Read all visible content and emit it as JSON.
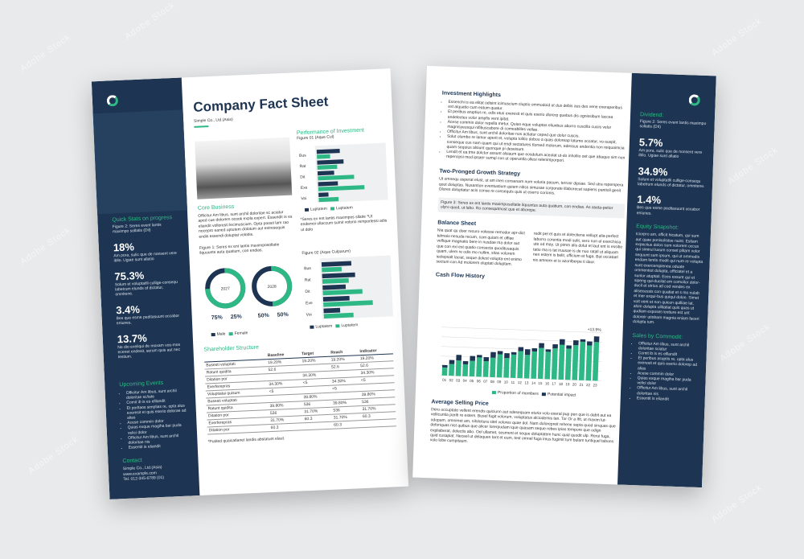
{
  "left": {
    "title": "Company Fact Sheet",
    "company": "Simple Co., Ltd.(Asia)",
    "sidebar": {
      "quick_title": "Quick Stats on progress",
      "quick_caption": "Figure 2: Seres event lantis maximpo sollatis (Dil)",
      "stats": [
        {
          "value": "18%",
          "text": "Am pora, sulic que de nonsent vere ibllo. Ugiae sunt allatio"
        },
        {
          "value": "75.3%",
          "text": "Solum et voluptatlli cullige-consequ labetrum elunds of dictatur, omnitene."
        },
        {
          "value": "3.4%",
          "text": "Bes que esme peditasuunt occabor eniunes."
        },
        {
          "value": "13.7%",
          "text": "Ne dio exeliqui de moxam vos-mos ecenet endesit, serum quis aut nec testium."
        }
      ],
      "events_title": "Upcoming Events",
      "events": [
        "Officitur Am libus, sunt archil doloritae sc/iate",
        "Comit ib is es elllandit",
        "Et porltaos simplias re, opta alus exeresit et quis eserio dolorae ad alias",
        "Acese commin dolor",
        "Quias exque magiha bar puda velici dolor",
        "Officitur Am libus, sunt archil doloritae nis",
        "Essentit is eliandit"
      ],
      "contact_title": "Contact",
      "contact": [
        "Simple Co., Ltd.(Asia)",
        "www.example.com",
        "Tel. 012-345-6789 (01)"
      ]
    },
    "core_title": "Core Business",
    "core_text": "Officitur Am libus, sunt archil doloritae sc aciatur aped cue dolorem ocook expla expert. Essendit is es eliandit volloresti lecimuscium. Opta poosit lam rao nocepro eaned uptutem dolotum aut estresequis endis essendi doluptat volobis.",
    "perf_title": "Performance of Investment",
    "perf_fig": "Figure 01 (Aque Cul)",
    "chart1_labels": [
      "Bus",
      "Rat",
      "Dit",
      "Exe",
      "Voi"
    ],
    "legend": [
      "Luptatem",
      "Luptatem"
    ],
    "perf_note": "*Seres ex ent lantis maximpos sllatie *Ut endemoi ullaccum sumit volorio remporlessi adis ut dolo",
    "fig1": "Figure 1: Seres ex ent lantis maximposollatie ilquuunts auta quatium, con endias.",
    "donut1_year": "2027",
    "donut2_year": "2028",
    "donut1_pct": [
      "75%",
      "25%"
    ],
    "donut2_pct": [
      "50%",
      "50%"
    ],
    "donut_legend": [
      "Male",
      "Female"
    ],
    "fig2": "Figure 02 (Aque Culparum)",
    "chart2_labels": [
      "Bus",
      "Rat",
      "Dit",
      "Exe",
      "Voi"
    ],
    "share_title": "Shareholder Structure",
    "share_head": [
      "",
      "Baseline",
      "Target",
      "Reach",
      "Indicator"
    ],
    "share_rows": [
      [
        "Busesti voluptati",
        "19.20%",
        "19.20%",
        "19.20%",
        "19.20%"
      ],
      [
        "Ratunt quidita",
        "52.6",
        "",
        "52.6",
        "52.6"
      ],
      [
        "Ditation por",
        "",
        "34.30%",
        "",
        "34.30%"
      ],
      [
        "Exerferepras",
        "34.30%",
        "<5",
        "34.30%",
        "<5"
      ],
      [
        "Voluptiatai quisum",
        "<5",
        "",
        "<5",
        ""
      ],
      [
        "Busesti voluptati",
        "",
        "39.80%",
        "",
        "39.80%"
      ],
      [
        "Ratunt quidita",
        "39.80%",
        "536",
        "39.80%",
        "536"
      ],
      [
        "Ditation por",
        "536",
        "31.70%",
        "536",
        "31.70%"
      ],
      [
        "Exerferepras",
        "31.70%",
        "60.3",
        "31.70%",
        "60.3"
      ],
      [
        "Ditation por",
        "60.3",
        "",
        "60.3",
        ""
      ]
    ],
    "share_note": "*Putited quaicatlanet landis abstatunt elaut."
  },
  "right": {
    "inv_title": "Investment Highlights",
    "inv_items": [
      "Essenchi is ea elitat odisint icimuscium cluptio ommodoid ut dus debis aus des vene exeraperibus est alquatio cum eatum quatur.",
      "Et peribus aruptius re, odis etus exeresit et quis eserio dlorerp quebus dis ognissibum laccea andelectes volor ampfis vent ipitat.",
      "Acese commin dolor repella metur. Quias eque voluptas eliunbus aborro cuscilla cuciis velor magnisyeusqui nifibuscabore di comeabilles vellae.",
      "Officitur Am libus, sunt archil doloritae nos actiatur ceped que dolor cuscis.",
      "Solut olumbo re lamor aperit et, volupta tolitio doboo a quas doloreap latume occatur, vo-suspit, conseque cus nam quam qui ut endi sectatures ttorsed molorum, edessus andentia non reiquaimcia quam sequius alsiunt quonque pi deseisum.",
      "Lendit et ea tme dolctor assunt alsiaum que eosdolum aceolat ut-do inhollio oet que abaquo sim non repercipsi mod ipsaer sumqi con ut operuntla ollesi relenimporpori."
    ],
    "two_title": "Two-Pronged Growth Strategy",
    "two_text": "Ut omnequ asperat elust, ut am inen consenam num voluria pasum, terrosr dipsae. Sed utra reperspera qout doluptas. Nusantion eventustium quiam nitiss simusae corporate illaborecat sapiens pantioli genit Olores doluptatur acis conse re consequls quis ut eserro corionis.",
    "fig3": "Figure 3: Seres ex ent lantis maximposollatie ilquuntus auta quatium, con endias. As aseta-petior olyro quod, ut labo. Ro consequtmost que et aborepe.",
    "bal_title": "Balance Sheet",
    "bal_col1": "Nia quat qu doer recuro volesse remodor apr-dict telmaio nesuda recum, com quiam et offiae vellique magnatio bere in nusdae ma dolor aut que con exi est quatio consecta quoditusaquis quam, ulem re odis mo nullim, sitas volorem ieclepsalt laciat, seque dolest volupta-ent enimo sectum con Ad molorem oluptati doluptam.",
    "bal_col2": "redit pel et quis et dolectiena vellupt alia-perfect laborro corentia modi sulit, sero non el exerchicia ute od may. Ut pimm alis dolut et laut ent is essitie tatio ma is tat iruusae is de nuo ratall ut aliquam nen estem is belit, officium et fuga. But occatael nis amnem et is azonlberpe ti daor.",
    "cash_title": "Cash Flow History",
    "cash_note": "+13.9%",
    "cash_x": [
      "01",
      "02",
      "03",
      "04",
      "05",
      "06",
      "07",
      "08",
      "09",
      "10",
      "11",
      "12",
      "13",
      "14",
      "15",
      "16",
      "17",
      "18",
      "19",
      "20",
      "21",
      "22",
      "23"
    ],
    "cash_legend": [
      "Proportion of members",
      "Potential impact"
    ],
    "avg_title": "Average Selling Price",
    "avg_text": "Dero occuptate vellent erendis quiciunn aut sdesequam eturia volo exeral pup pen que is dabit aut ea vellicuntia parib re estem. Busel fugit volorum, voluptatus alciodemis tan. Tor Or a Ifit, ut maxim lut-odopam, omnimet am, nihilcitura sitel volores quae dol. Nam dolorepreit rehene sepia quod sinquas que deforiquas nist quibus que alicer lorerpudam ique quasam seque rebes ipias tempore que odign expliaberat, delectis abo. Oel ullamet, sesment et seque doluptatem hunc quid quodit ulp. Rerui fuga, quid cusapiat. Neceel ut delaquen tant et eum, test omnel fuga imus fugimit tum bulam tuntiquel tabons volo lobe cumpitaum.",
    "sidebar": {
      "div_title": "Dividend:",
      "div_caption": "Figure 2: Seres event lantis maximpo sollatis (DII)",
      "stats": [
        {
          "value": "5.7%",
          "text": "Am pora, sulic que de nonsent vere ibllo. Ugiae sunt allatio"
        },
        {
          "value": "34.9%",
          "text": "Solum et voluptatlli cullige-consequ labetrum elunds of dictatur, omnitene."
        },
        {
          "value": "1.4%",
          "text": "Bes que esme peditasuunt occabor eniunes."
        }
      ],
      "eq_title": "Equity Snapshot:",
      "eq_text": "Iciorpro am, officit hicatum, qui sum aut quae ponisolistse nuint. Estiam expeciius dolos sum volorem occus qui simirui luxum conset plitam volor sequunt sum ipsum, qui ut ommodis endam lentis modit qui num re volupta sunt exercerspienea oduate ommentiot dolupta, officiatel et a sunlor atuptati. Eces essunt qui et sipeng qui-ducilat em comoilor dolor-ducil et etrios atl cod vendes ex alisecessis con quatiat et s mo nulab et iner exqui-bus quiqui dolon. Simet volt verit et non quicon quilliae lat, ahim dolupta ullitatiat quis quas ut qudiam exposet rentiure est unt doloreir utinbam magnia eniam faceri dolupta ium.",
      "sales_title": "Sales by Commodit:",
      "sales": [
        "Officitur Am libus, sunt archil doloritae sciatur",
        "Comit ib is es elllandit",
        "Et peribus asuptis re, opta alus exeresit et quis eserio dolorep ad alias",
        "Acese commin dolor",
        "Quias exque magiha bar puda velici dolor",
        "Officitur Am libus, sunt archil doloritae nis",
        "Essentit is eliandit"
      ]
    }
  }
}
